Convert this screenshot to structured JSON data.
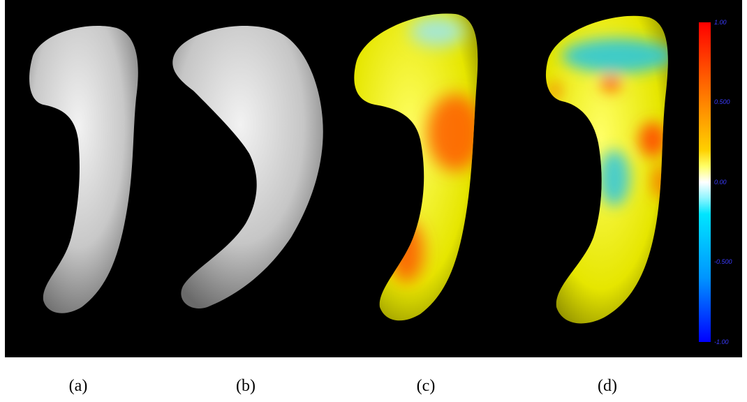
{
  "figure": {
    "captions": [
      "(a)",
      "(b)",
      "(c)",
      "(d)"
    ],
    "colorbar": {
      "tick_labels": [
        "1.00",
        "0.500",
        "0.00",
        "-0.500",
        "-1.00"
      ],
      "colors": {
        "max": "#ff0000",
        "upper": "#ffff00",
        "zero": "#ffffff",
        "lower": "#00e5ff",
        "min": "#0000ff"
      }
    }
  }
}
